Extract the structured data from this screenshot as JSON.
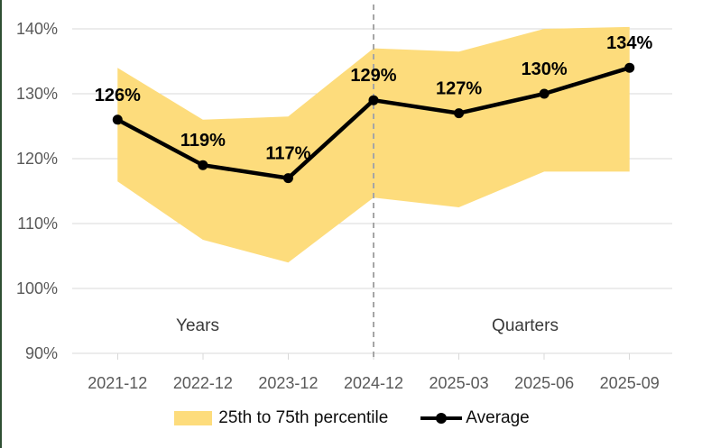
{
  "page": {
    "background": "#FFFFFF",
    "left_edge_color": "#2F4F33"
  },
  "chart_data": {
    "type": "line",
    "title": "",
    "categories": [
      "2021-12",
      "2022-12",
      "2023-12",
      "2024-12",
      "2025-03",
      "2025-06",
      "2025-09"
    ],
    "series": [
      {
        "name": "25th to 75th percentile",
        "kind": "band",
        "upper": [
          134,
          126,
          126.5,
          137,
          136.5,
          140,
          140.3
        ],
        "lower": [
          116.5,
          107.5,
          104,
          114,
          112.5,
          118,
          118
        ],
        "color": "#FDDC7C"
      },
      {
        "name": "Average",
        "kind": "line",
        "values": [
          126,
          119,
          117,
          129,
          127,
          130,
          134
        ],
        "color": "#000000"
      }
    ],
    "data_labels": [
      "126%",
      "119%",
      "117%",
      "129%",
      "127%",
      "130%",
      "134%"
    ],
    "xlabel": "",
    "ylabel": "",
    "ylim": [
      90,
      140
    ],
    "ytick_step": 10,
    "ytick_suffix": "%",
    "grid": "horizontal",
    "grid_color": "#D9D9D9",
    "axis_text_color": "#595959",
    "data_label_color": "#000000",
    "divider": {
      "at_category": "2024-12",
      "style": "dashed",
      "color": "#A6A6A6"
    },
    "annotations": [
      {
        "text": "Years",
        "section": "left"
      },
      {
        "text": "Quarters",
        "section": "right"
      }
    ],
    "legend_position": "bottom"
  },
  "legend": {
    "items": [
      {
        "label": "25th to 75th percentile",
        "swatch": "band"
      },
      {
        "label": "Average",
        "swatch": "line-dot"
      }
    ]
  }
}
